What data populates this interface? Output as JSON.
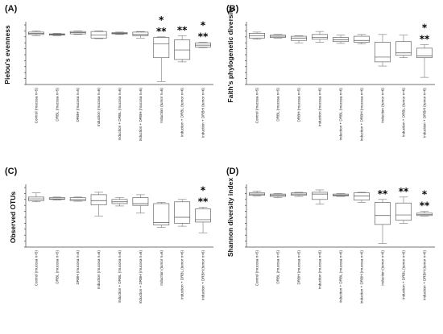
{
  "chart_data": [
    {
      "panel": "(A)",
      "type": "box",
      "ylabel": "Pielou's evenness",
      "ylim": [
        0,
        100
      ],
      "yticks": [
        "",
        "",
        "",
        "",
        "",
        "",
        "",
        "",
        "",
        "",
        ""
      ],
      "categories": [
        "Control (mucosa n=5)",
        "DRBL (mucosa n=5)",
        "DRBH (mucosa n=5)",
        "Induction (mucosa n=6)",
        "Induction + DRBL (mucosa n=6)",
        "Induction + DRBH (mucosa n=6)",
        "Induction (tumor n=6)",
        "Induction + DRBL (tumor n=6)",
        "Induction + DRBH (tumor n=6)"
      ],
      "boxes": [
        {
          "min": 82,
          "q1": 84,
          "median": 86,
          "q3": 88,
          "max": 90
        },
        {
          "min": 82,
          "q1": 83,
          "median": 84,
          "q3": 85,
          "max": 86
        },
        {
          "min": 84,
          "q1": 85,
          "median": 87,
          "q3": 89,
          "max": 90
        },
        {
          "min": 77,
          "q1": 78,
          "median": 83,
          "q3": 89,
          "max": 90
        },
        {
          "min": 84,
          "q1": 85,
          "median": 86,
          "q3": 87,
          "max": 88
        },
        {
          "min": 78,
          "q1": 82,
          "median": 84,
          "q3": 88,
          "max": 89
        },
        {
          "min": 5,
          "q1": 45,
          "median": 68,
          "q3": 79,
          "max": 80
        },
        {
          "min": 38,
          "q1": 42,
          "median": 58,
          "q3": 75,
          "max": 82
        },
        {
          "min": 62,
          "q1": 63,
          "median": 66,
          "q3": 70,
          "max": 71
        }
      ],
      "significance": [
        {
          "index": 6,
          "marks": [
            "*",
            "**"
          ]
        },
        {
          "index": 7,
          "marks": [
            "**"
          ]
        },
        {
          "index": 8,
          "marks": [
            "*",
            "**"
          ]
        }
      ]
    },
    {
      "panel": "(B)",
      "type": "box",
      "ylabel": "Faith's phylogenetic diversity",
      "ylim": [
        0,
        100
      ],
      "yticks": [
        "",
        "",
        "",
        "",
        "",
        "",
        "",
        "",
        "",
        "",
        ""
      ],
      "categories": [
        "Control (mucosa n=5)",
        "DRBL (mucosa n=5)",
        "DRBH (mucosa n=5)",
        "Induction (mucosa n=6)",
        "Induction + DRBL (mucosa n=6)",
        "Induction + DRBH (mucosa n=6)",
        "Induction (tumor n=6)",
        "Induction + DRBL (tumor n=6)",
        "Induction + DRBH (tumor n=6)"
      ],
      "boxes": [
        {
          "min": 76,
          "q1": 78,
          "median": 82,
          "q3": 86,
          "max": 88
        },
        {
          "min": 78,
          "q1": 79,
          "median": 81,
          "q3": 83,
          "max": 84
        },
        {
          "min": 70,
          "q1": 74,
          "median": 78,
          "q3": 81,
          "max": 82
        },
        {
          "min": 71,
          "q1": 76,
          "median": 79,
          "q3": 84,
          "max": 89
        },
        {
          "min": 69,
          "q1": 72,
          "median": 75,
          "q3": 79,
          "max": 83
        },
        {
          "min": 68,
          "q1": 71,
          "median": 74,
          "q3": 81,
          "max": 84
        },
        {
          "min": 31,
          "q1": 38,
          "median": 46,
          "q3": 71,
          "max": 84
        },
        {
          "min": 45,
          "q1": 49,
          "median": 53,
          "q3": 72,
          "max": 83
        },
        {
          "min": 12,
          "q1": 45,
          "median": 48,
          "q3": 61,
          "max": 67
        }
      ],
      "significance": [
        {
          "index": 8,
          "marks": [
            "*",
            "**"
          ]
        }
      ]
    },
    {
      "panel": "(C)",
      "type": "box",
      "ylabel": "Observed OTUs",
      "ylim": [
        0,
        100
      ],
      "yticks": [
        "",
        "",
        "",
        "",
        "",
        "",
        "",
        "",
        "",
        "",
        ""
      ],
      "categories": [
        "Control (mucosa n=5)",
        "DRBL (mucosa n=5)",
        "DRBH (mucosa n=5)",
        "Induction (mucosa n=6)",
        "Induction + DRBL (mucosa n=6)",
        "Induction + DRBH (mucosa n=6)",
        "Induction (tumor n=6)",
        "Induction + DRBL (tumor n=6)",
        "Induction + DRBH (tumor n=6)"
      ],
      "boxes": [
        {
          "min": 76,
          "q1": 78,
          "median": 81,
          "q3": 84,
          "max": 91
        },
        {
          "min": 79,
          "q1": 80,
          "median": 81,
          "q3": 83,
          "max": 84
        },
        {
          "min": 77,
          "q1": 78,
          "median": 80,
          "q3": 83,
          "max": 84
        },
        {
          "min": 52,
          "q1": 71,
          "median": 78,
          "q3": 88,
          "max": 92
        },
        {
          "min": 69,
          "q1": 73,
          "median": 76,
          "q3": 80,
          "max": 83
        },
        {
          "min": 57,
          "q1": 70,
          "median": 73,
          "q3": 83,
          "max": 88
        },
        {
          "min": 33,
          "q1": 37,
          "median": 41,
          "q3": 73,
          "max": 75
        },
        {
          "min": 35,
          "q1": 40,
          "median": 50,
          "q3": 76,
          "max": 80
        },
        {
          "min": 24,
          "q1": 42,
          "median": 46,
          "q3": 64,
          "max": 67
        }
      ],
      "significance": [
        {
          "index": 8,
          "marks": [
            "*",
            "**"
          ]
        }
      ]
    },
    {
      "panel": "(D)",
      "type": "box",
      "ylabel": "Shannon diversity index",
      "ylim": [
        0,
        100
      ],
      "yticks": [
        "",
        "",
        "",
        "",
        "",
        "",
        "",
        "",
        "",
        "",
        ""
      ],
      "categories": [
        "Control (mucosa n=5)",
        "DRBL (mucosa n=5)",
        "DRBH (mucosa n=5)",
        "Induction (mucosa n=6)",
        "Induction + DRBL (mucosa n=6)",
        "Induction + DRBH (mucosa n=6)",
        "Induction (tumor n=6)",
        "Induction + DRBL (tumor n=6)",
        "Induction + DRBH (tumor n=6)"
      ],
      "boxes": [
        {
          "min": 86,
          "q1": 87,
          "median": 89,
          "q3": 91,
          "max": 94
        },
        {
          "min": 83,
          "q1": 85,
          "median": 87,
          "q3": 89,
          "max": 90
        },
        {
          "min": 85,
          "q1": 87,
          "median": 89,
          "q3": 91,
          "max": 92
        },
        {
          "min": 72,
          "q1": 80,
          "median": 89,
          "q3": 92,
          "max": 96
        },
        {
          "min": 85,
          "q1": 86,
          "median": 87,
          "q3": 89,
          "max": 90
        },
        {
          "min": 75,
          "q1": 79,
          "median": 86,
          "q3": 91,
          "max": 92
        },
        {
          "min": 6,
          "q1": 38,
          "median": 53,
          "q3": 75,
          "max": 80
        },
        {
          "min": 40,
          "q1": 45,
          "median": 54,
          "q3": 74,
          "max": 84
        },
        {
          "min": 52,
          "q1": 53,
          "median": 55,
          "q3": 57,
          "max": 60
        }
      ],
      "significance": [
        {
          "index": 6,
          "marks": [
            "**"
          ]
        },
        {
          "index": 7,
          "marks": [
            "**"
          ]
        },
        {
          "index": 8,
          "marks": [
            "*",
            "**"
          ]
        }
      ]
    }
  ]
}
